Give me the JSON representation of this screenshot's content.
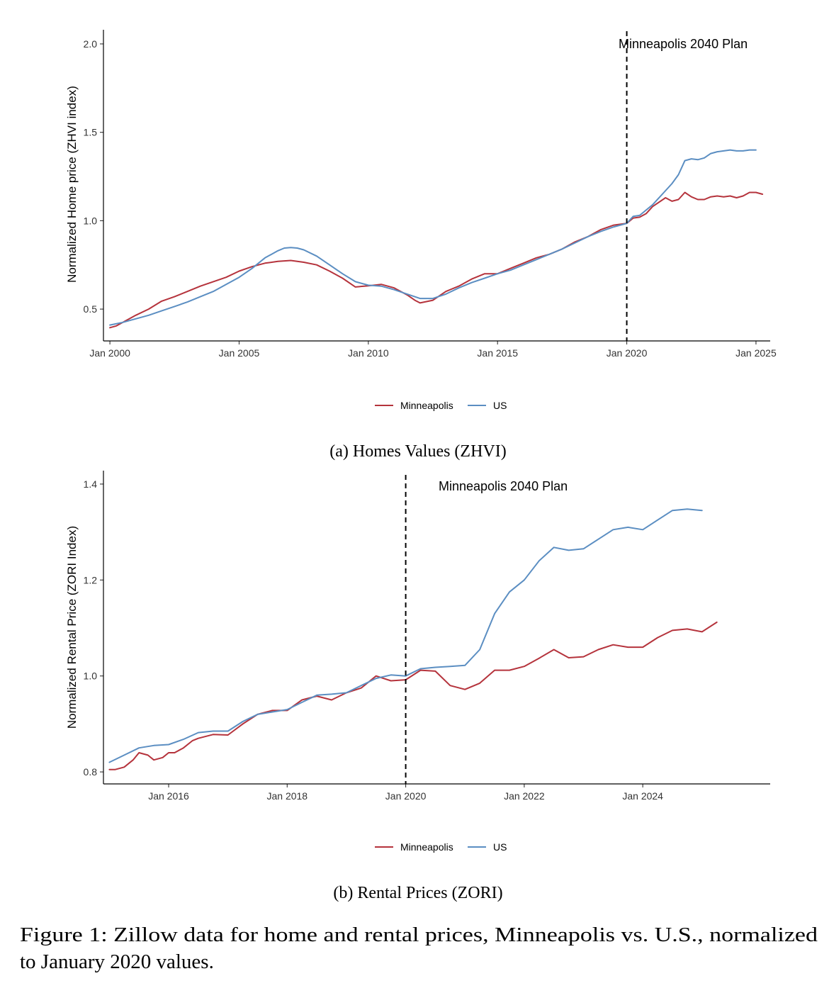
{
  "chart_data": [
    {
      "type": "line",
      "title": "",
      "xlabel": "",
      "ylabel": "Normalized Home price (ZHVI index)",
      "xlim": [
        1999.75,
        2025.55
      ],
      "ylim": [
        0.32,
        2.08
      ],
      "x_ticks": [
        {
          "value": 2000,
          "label": "Jan 2000"
        },
        {
          "value": 2005,
          "label": "Jan 2005"
        },
        {
          "value": 2010,
          "label": "Jan 2010"
        },
        {
          "value": 2015,
          "label": "Jan 2015"
        },
        {
          "value": 2020,
          "label": "Jan 2020"
        },
        {
          "value": 2025,
          "label": "Jan 2025"
        }
      ],
      "y_ticks": [
        {
          "value": 0.5,
          "label": "0.5"
        },
        {
          "value": 1.0,
          "label": "1.0"
        },
        {
          "value": 1.5,
          "label": "1.5"
        },
        {
          "value": 2.0,
          "label": "2.0"
        }
      ],
      "vline": {
        "x": 2020,
        "label": "Minneapolis 2040 Plan"
      },
      "caption": "(a) Homes Values (ZHVI)",
      "legend": [
        {
          "name": "Minneapolis",
          "color": "#b5333c"
        },
        {
          "name": "US",
          "color": "#5b8ec2"
        }
      ],
      "series": [
        {
          "name": "Minneapolis",
          "color": "#b5333c",
          "x": [
            2000.0,
            2000.25,
            2000.5,
            2001.0,
            2001.5,
            2002.0,
            2002.5,
            2003.0,
            2003.5,
            2004.0,
            2004.5,
            2005.0,
            2005.5,
            2006.0,
            2006.5,
            2007.0,
            2007.5,
            2008.0,
            2008.5,
            2009.0,
            2009.5,
            2010.0,
            2010.5,
            2011.0,
            2011.5,
            2011.8,
            2012.0,
            2012.5,
            2013.0,
            2013.5,
            2014.0,
            2014.5,
            2015.0,
            2015.5,
            2016.0,
            2016.5,
            2017.0,
            2017.5,
            2018.0,
            2018.5,
            2019.0,
            2019.5,
            2020.0,
            2020.25,
            2020.5,
            2020.75,
            2021.0,
            2021.5,
            2021.75,
            2022.0,
            2022.25,
            2022.5,
            2022.75,
            2023.0,
            2023.25,
            2023.5,
            2023.75,
            2024.0,
            2024.25,
            2024.5,
            2024.75,
            2025.0,
            2025.25
          ],
          "values": [
            0.395,
            0.405,
            0.425,
            0.465,
            0.5,
            0.545,
            0.57,
            0.6,
            0.63,
            0.655,
            0.68,
            0.715,
            0.74,
            0.76,
            0.77,
            0.775,
            0.765,
            0.75,
            0.715,
            0.675,
            0.625,
            0.632,
            0.64,
            0.62,
            0.58,
            0.55,
            0.535,
            0.55,
            0.6,
            0.63,
            0.67,
            0.7,
            0.7,
            0.73,
            0.76,
            0.79,
            0.81,
            0.84,
            0.88,
            0.91,
            0.95,
            0.975,
            0.985,
            1.015,
            1.02,
            1.04,
            1.08,
            1.13,
            1.11,
            1.12,
            1.16,
            1.135,
            1.12,
            1.12,
            1.135,
            1.14,
            1.135,
            1.14,
            1.13,
            1.14,
            1.16,
            1.16,
            1.15
          ]
        },
        {
          "name": "US",
          "color": "#5b8ec2",
          "x": [
            2000.0,
            2000.5,
            2001.0,
            2001.5,
            2002.0,
            2002.5,
            2003.0,
            2003.5,
            2004.0,
            2004.5,
            2005.0,
            2005.5,
            2006.0,
            2006.5,
            2006.75,
            2007.0,
            2007.25,
            2007.5,
            2008.0,
            2008.5,
            2009.0,
            2009.5,
            2010.0,
            2010.5,
            2011.0,
            2011.5,
            2012.0,
            2012.5,
            2013.0,
            2013.5,
            2014.0,
            2014.5,
            2015.0,
            2015.5,
            2016.0,
            2016.5,
            2017.0,
            2017.5,
            2018.0,
            2018.5,
            2019.0,
            2019.5,
            2020.0,
            2020.25,
            2020.5,
            2021.0,
            2021.5,
            2021.75,
            2022.0,
            2022.25,
            2022.5,
            2022.75,
            2023.0,
            2023.25,
            2023.5,
            2023.75,
            2024.0,
            2024.25,
            2024.5,
            2024.75,
            2025.0
          ],
          "values": [
            0.41,
            0.425,
            0.445,
            0.465,
            0.49,
            0.515,
            0.54,
            0.57,
            0.6,
            0.64,
            0.68,
            0.73,
            0.79,
            0.83,
            0.845,
            0.848,
            0.845,
            0.835,
            0.8,
            0.75,
            0.7,
            0.655,
            0.635,
            0.63,
            0.61,
            0.585,
            0.56,
            0.56,
            0.585,
            0.62,
            0.65,
            0.675,
            0.7,
            0.72,
            0.75,
            0.78,
            0.81,
            0.84,
            0.875,
            0.91,
            0.94,
            0.965,
            0.985,
            1.025,
            1.03,
            1.09,
            1.17,
            1.21,
            1.26,
            1.34,
            1.35,
            1.345,
            1.355,
            1.38,
            1.39,
            1.395,
            1.4,
            1.395,
            1.395,
            1.4,
            1.4
          ]
        }
      ]
    },
    {
      "type": "line",
      "title": "",
      "xlabel": "",
      "ylabel": "Normalized Rental Price (ZORI Index)",
      "xlim": [
        2014.9,
        2026.15
      ],
      "ylim": [
        0.775,
        1.428
      ],
      "x_ticks": [
        {
          "value": 2016,
          "label": "Jan 2016"
        },
        {
          "value": 2018,
          "label": "Jan 2018"
        },
        {
          "value": 2020,
          "label": "Jan 2020"
        },
        {
          "value": 2022,
          "label": "Jan 2022"
        },
        {
          "value": 2024,
          "label": "Jan 2024"
        }
      ],
      "y_ticks": [
        {
          "value": 0.8,
          "label": "0.8"
        },
        {
          "value": 1.0,
          "label": "1.0"
        },
        {
          "value": 1.2,
          "label": "1.2"
        },
        {
          "value": 1.4,
          "label": "1.4"
        }
      ],
      "vline": {
        "x": 2020,
        "label": "Minneapolis 2040 Plan"
      },
      "caption": "(b) Rental Prices (ZORI)",
      "legend": [
        {
          "name": "Minneapolis",
          "color": "#b5333c"
        },
        {
          "name": "US",
          "color": "#5b8ec2"
        }
      ],
      "series": [
        {
          "name": "Minneapolis",
          "color": "#b5333c",
          "x": [
            2015.0,
            2015.1,
            2015.25,
            2015.4,
            2015.5,
            2015.65,
            2015.75,
            2015.9,
            2016.0,
            2016.1,
            2016.25,
            2016.4,
            2016.5,
            2016.75,
            2017.0,
            2017.25,
            2017.5,
            2017.75,
            2018.0,
            2018.25,
            2018.5,
            2018.75,
            2019.0,
            2019.25,
            2019.5,
            2019.75,
            2020.0,
            2020.25,
            2020.5,
            2020.75,
            2021.0,
            2021.25,
            2021.5,
            2021.75,
            2022.0,
            2022.25,
            2022.5,
            2022.75,
            2023.0,
            2023.25,
            2023.5,
            2023.75,
            2024.0,
            2024.25,
            2024.5,
            2024.75,
            2025.0,
            2025.25
          ],
          "values": [
            0.805,
            0.805,
            0.81,
            0.825,
            0.84,
            0.835,
            0.825,
            0.83,
            0.84,
            0.84,
            0.85,
            0.865,
            0.87,
            0.878,
            0.877,
            0.9,
            0.92,
            0.928,
            0.928,
            0.95,
            0.958,
            0.95,
            0.965,
            0.975,
            1.0,
            0.99,
            0.992,
            1.012,
            1.01,
            0.98,
            0.972,
            0.985,
            1.012,
            1.012,
            1.02,
            1.037,
            1.055,
            1.038,
            1.04,
            1.055,
            1.065,
            1.06,
            1.06,
            1.08,
            1.095,
            1.098,
            1.092,
            1.112
          ]
        },
        {
          "name": "US",
          "color": "#5b8ec2",
          "x": [
            2015.0,
            2015.25,
            2015.5,
            2015.75,
            2016.0,
            2016.25,
            2016.5,
            2016.75,
            2017.0,
            2017.25,
            2017.5,
            2017.75,
            2018.0,
            2018.25,
            2018.5,
            2018.75,
            2019.0,
            2019.25,
            2019.5,
            2019.75,
            2020.0,
            2020.25,
            2020.5,
            2020.75,
            2021.0,
            2021.25,
            2021.5,
            2021.75,
            2022.0,
            2022.25,
            2022.5,
            2022.75,
            2023.0,
            2023.25,
            2023.5,
            2023.75,
            2024.0,
            2024.25,
            2024.5,
            2024.75,
            2025.0
          ],
          "values": [
            0.82,
            0.835,
            0.85,
            0.855,
            0.857,
            0.868,
            0.882,
            0.885,
            0.885,
            0.905,
            0.92,
            0.925,
            0.93,
            0.945,
            0.96,
            0.962,
            0.965,
            0.98,
            0.995,
            1.002,
            1.0,
            1.015,
            1.018,
            1.02,
            1.022,
            1.055,
            1.13,
            1.175,
            1.2,
            1.24,
            1.268,
            1.262,
            1.265,
            1.285,
            1.305,
            1.31,
            1.305,
            1.325,
            1.345,
            1.348,
            1.345
          ]
        }
      ]
    }
  ],
  "figure_caption": {
    "line1": "Figure 1: Zillow data for home and rental prices, Minneapolis vs. U.S., normalized",
    "line2": "to January 2020 values."
  }
}
